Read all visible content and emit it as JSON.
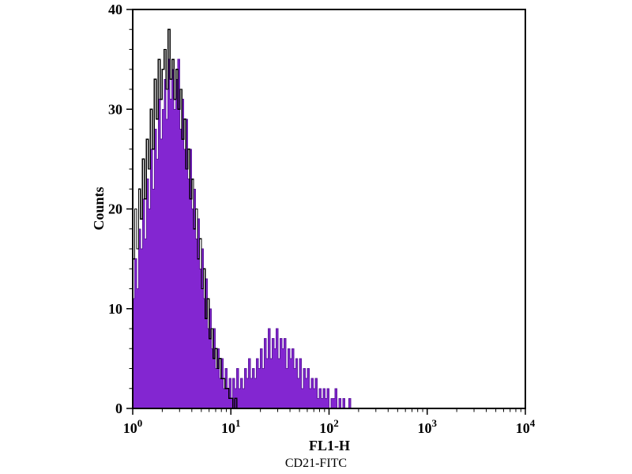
{
  "figure": {
    "caption": "CD21-FITC"
  },
  "chart_data": {
    "type": "bar",
    "subtype": "flow-cytometry-overlay-histogram",
    "title": "",
    "xlabel": "FL1-H",
    "ylabel": "Counts",
    "x_scale": "log10",
    "x_decades": [
      0,
      4
    ],
    "x_tick_exponents": [
      0,
      1,
      2,
      3,
      4
    ],
    "ylim": [
      0,
      40
    ],
    "y_ticks": [
      0,
      10,
      20,
      30,
      40
    ],
    "y_minor_step": 2,
    "grid": false,
    "legend": "none",
    "bin_width_decades": 0.02,
    "series": [
      {
        "style": "filled",
        "fill": "#8326d1",
        "stroke": "#5e189e",
        "values": [
          11,
          15,
          12,
          18,
          16,
          21,
          17,
          23,
          20,
          26,
          22,
          28,
          25,
          31,
          27,
          30,
          33,
          29,
          35,
          31,
          34,
          30,
          33,
          35,
          28,
          31,
          26,
          29,
          23,
          26,
          20,
          22,
          17,
          19,
          14,
          16,
          11,
          13,
          8,
          10,
          6,
          8,
          4,
          6,
          3,
          5,
          2,
          4,
          2,
          3,
          1,
          3,
          2,
          4,
          2,
          3,
          2,
          4,
          3,
          5,
          3,
          4,
          3,
          5,
          4,
          6,
          4,
          7,
          5,
          8,
          5,
          7,
          6,
          8,
          5,
          7,
          6,
          7,
          4,
          6,
          5,
          6,
          4,
          5,
          3,
          5,
          2,
          4,
          3,
          4,
          2,
          3,
          2,
          3,
          1,
          2,
          1,
          2,
          1,
          2,
          0,
          1,
          1,
          2,
          0,
          1,
          0,
          1,
          0,
          0,
          1,
          0,
          0,
          0,
          0,
          0,
          0,
          0,
          0,
          0,
          0,
          0,
          0,
          0,
          0,
          0,
          0,
          0
        ]
      },
      {
        "style": "open",
        "fill": "none",
        "stroke": "#000000",
        "values": [
          15,
          20,
          16,
          22,
          19,
          25,
          21,
          27,
          24,
          30,
          26,
          33,
          29,
          35,
          31,
          34,
          36,
          32,
          38,
          33,
          35,
          31,
          34,
          30,
          32,
          27,
          29,
          24,
          26,
          21,
          23,
          18,
          20,
          15,
          17,
          12,
          14,
          9,
          11,
          7,
          8,
          5,
          6,
          4,
          5,
          3,
          3,
          2,
          2,
          1,
          1,
          0,
          1,
          0,
          0,
          0,
          0,
          0,
          0,
          0,
          0,
          0,
          0,
          0,
          0,
          0,
          0,
          0,
          0,
          0,
          0,
          0,
          0,
          0,
          0,
          0,
          0,
          0,
          0,
          0,
          0,
          0,
          0,
          0,
          0,
          0,
          0,
          0,
          0,
          0,
          0,
          0,
          0,
          0,
          0,
          0,
          0,
          0,
          0,
          0,
          0,
          0,
          0,
          0,
          0,
          0,
          0,
          0,
          0,
          0,
          0,
          0,
          0,
          0,
          0,
          0,
          0,
          0,
          0,
          0,
          0,
          0,
          0,
          0,
          0,
          0,
          0,
          0
        ]
      }
    ]
  }
}
